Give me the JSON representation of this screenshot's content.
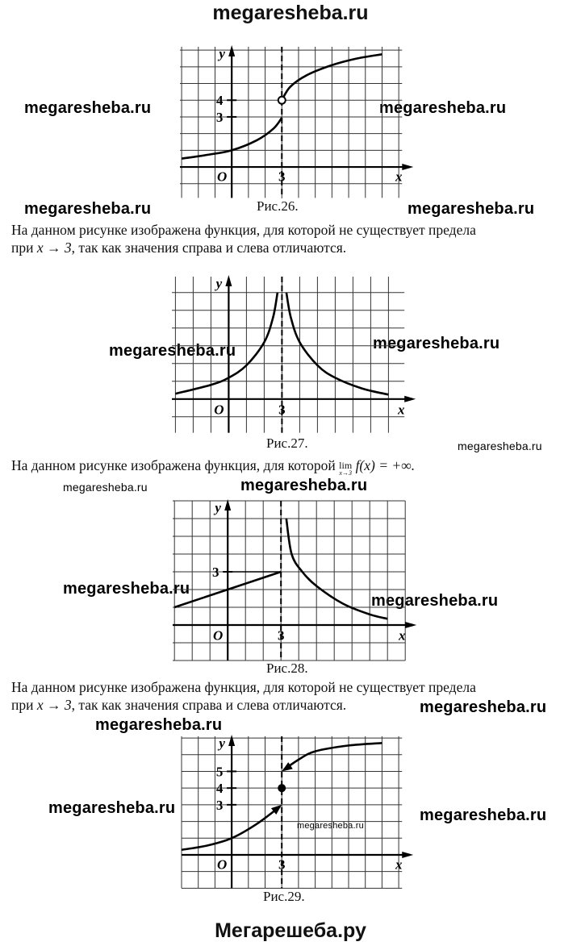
{
  "header": {
    "site": "megaresheba.ru"
  },
  "footer": {
    "site": "Мегарешеба.ру"
  },
  "watermark": "megaresheba.ru",
  "figures": [
    {
      "caption": "Рис.26.",
      "x_label": "x",
      "y_label": "y",
      "origin": "O",
      "x_ticks": [
        "3"
      ],
      "y_ticks": [
        "4",
        "3"
      ],
      "open_point": "(3, 4)"
    },
    {
      "caption": "Рис.27.",
      "x_label": "x",
      "y_label": "y",
      "origin": "O",
      "x_ticks": [
        "3"
      ],
      "y_ticks": []
    },
    {
      "caption": "Рис.28.",
      "x_label": "x",
      "y_label": "y",
      "origin": "O",
      "x_ticks": [
        "3"
      ],
      "y_ticks": [
        "3"
      ]
    },
    {
      "caption": "Рис.29.",
      "x_label": "x",
      "y_label": "y",
      "origin": "O",
      "x_ticks": [
        "3"
      ],
      "y_ticks": [
        "5",
        "4",
        "3"
      ],
      "filled_point": "(3, 4)"
    }
  ],
  "texts": {
    "t1_line1": "На данном рисунке изображена функция, для которой не существует предела",
    "t1_line2_pre": "при ",
    "t1_math": "x → 3",
    "t1_line2_post": ", так как значения справа и слева отличаются.",
    "t2_pre": "На данном рисунке изображена функция, для которой ",
    "t2_lim": "lim",
    "t2_lim_sub": "x→3",
    "t2_expr": " f(x) = +∞.",
    "t3_line1": "На данном рисунке изображена функция, для которой не существует предела",
    "t3_line2_pre": "при ",
    "t3_math": "x → 3",
    "t3_line2_post": ", так как значения справа и слева отличаются."
  }
}
